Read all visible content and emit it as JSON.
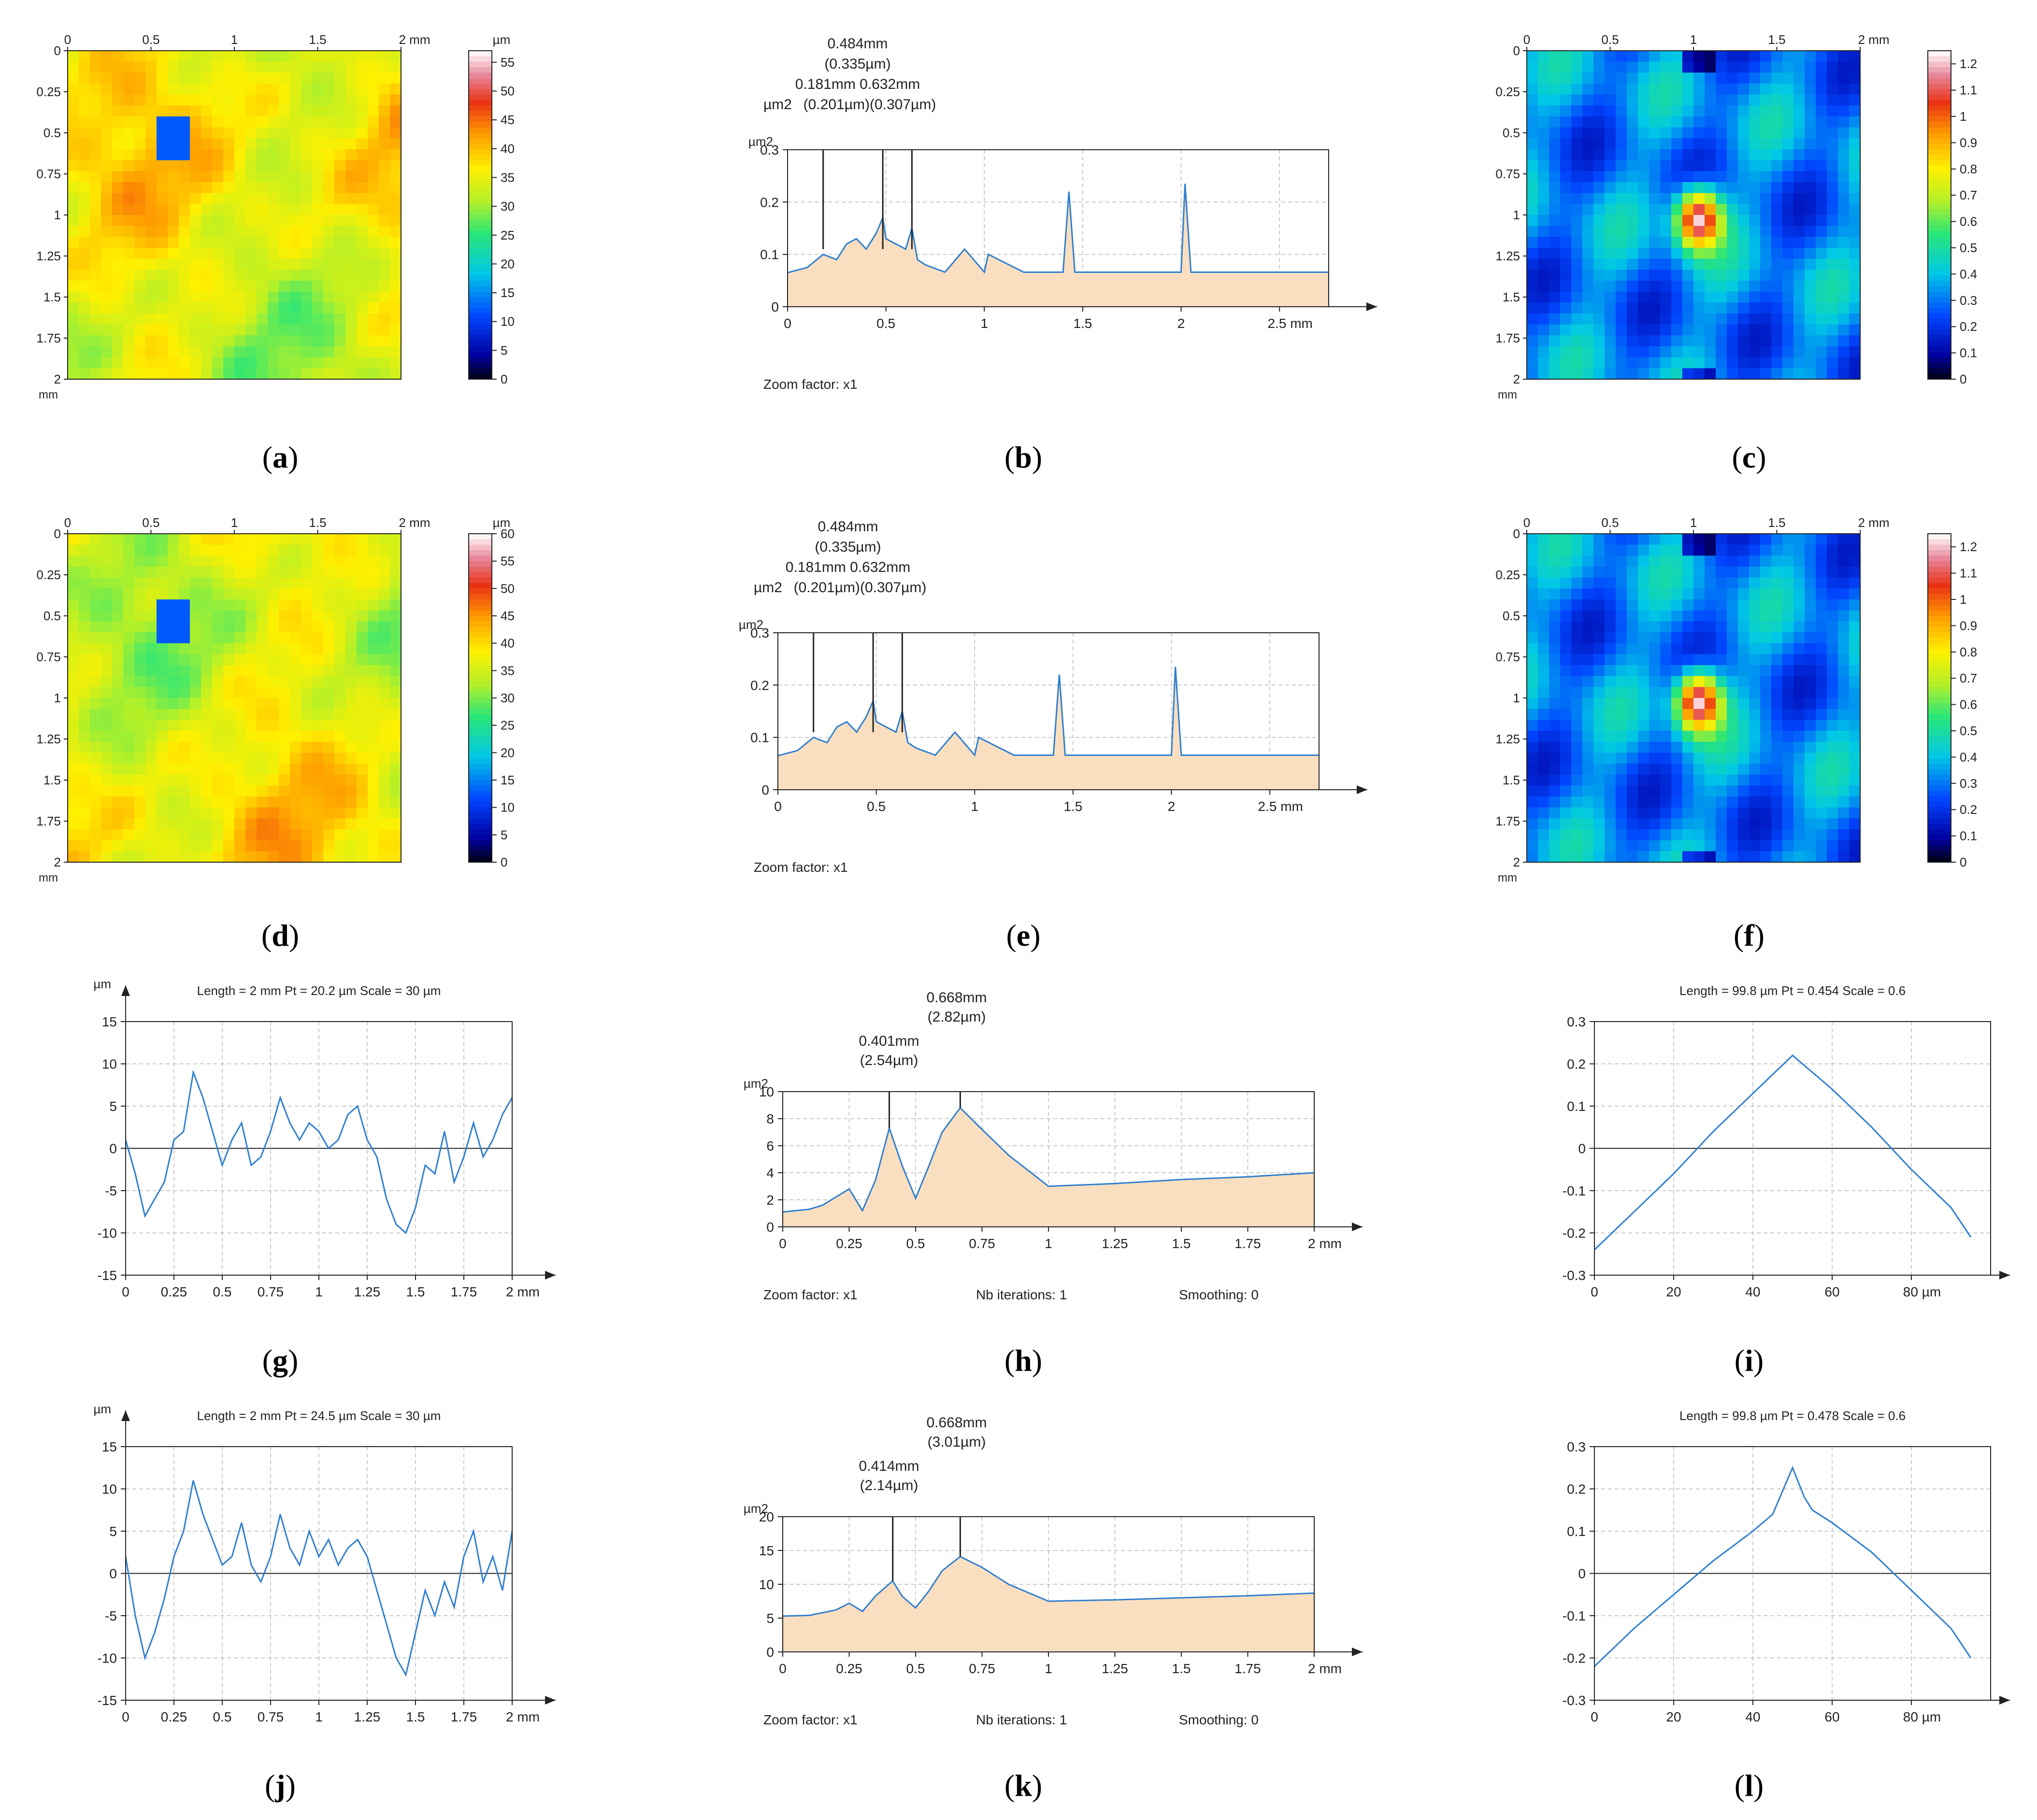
{
  "colors": {
    "line": "#2f7fd0",
    "fill": "#f9dfc0",
    "grid": "#b8b8b8",
    "axis": "#222222"
  },
  "chart_data": [
    {
      "id": "a",
      "type": "heatmap",
      "caption": "a",
      "axis_unit": "mm",
      "value_unit": "µm",
      "x_ticks": [
        "0",
        "0.5",
        "1",
        "1.5",
        "2 mm"
      ],
      "y_ticks": [
        "0",
        "0.25",
        "0.5",
        "0.75",
        "1",
        "1.25",
        "1.5",
        "1.75",
        "2"
      ],
      "y_unit_label": "mm",
      "colorbar_ticks": [
        "55",
        "50",
        "45",
        "40",
        "35",
        "30",
        "25",
        "20",
        "15",
        "10",
        "5",
        "0"
      ],
      "colorbar_range": [
        0,
        57
      ],
      "colormap": "rainbow-height"
    },
    {
      "id": "b",
      "type": "line",
      "caption": "b",
      "ylabel": "µm2",
      "y_ticks": [
        "0.3",
        "0.2",
        "0.1",
        "0"
      ],
      "x_ticks": [
        "0",
        "0.5",
        "1",
        "1.5",
        "2",
        "2.5 mm"
      ],
      "xlim": [
        0,
        2.75
      ],
      "ylim": [
        0,
        0.3
      ],
      "peak_labels": [
        {
          "x": 0.181,
          "line1": "0.181mm",
          "line2": "(0.201µm)"
        },
        {
          "x": 0.484,
          "line1": "0.484mm",
          "line2": "(0.335µm)"
        },
        {
          "x": 0.632,
          "line1": "0.632mm",
          "line2": "(0.307µm)"
        }
      ],
      "peak_text": {
        "top1": "0.484mm",
        "top2": "(0.335µm)",
        "mid": "0.181mm 0.632mm",
        "bottom": "(0.201µm)(0.307µm)"
      },
      "footer": "Zoom factor: x1",
      "series": [
        {
          "name": "spectrum",
          "x": [
            0,
            0.1,
            0.181,
            0.25,
            0.3,
            0.35,
            0.4,
            0.45,
            0.484,
            0.5,
            0.55,
            0.6,
            0.632,
            0.66,
            0.7,
            0.8,
            0.9,
            1.0,
            1.02,
            1.2,
            1.4,
            1.43,
            1.46,
            1.8,
            2.0,
            2.02,
            2.05,
            2.75
          ],
          "y": [
            0.065,
            0.075,
            0.1,
            0.09,
            0.12,
            0.13,
            0.11,
            0.14,
            0.17,
            0.13,
            0.12,
            0.11,
            0.15,
            0.09,
            0.08,
            0.066,
            0.11,
            0.066,
            0.1,
            0.066,
            0.066,
            0.22,
            0.066,
            0.066,
            0.066,
            0.235,
            0.066,
            0.066
          ]
        }
      ]
    },
    {
      "id": "c",
      "type": "heatmap",
      "caption": "c",
      "axis_unit": "mm",
      "x_ticks": [
        "0",
        "0.5",
        "1",
        "1.5",
        "2 mm"
      ],
      "y_ticks": [
        "0",
        "0.25",
        "0.5",
        "0.75",
        "1",
        "1.25",
        "1.5",
        "1.75",
        "2"
      ],
      "y_unit_label": "mm",
      "colorbar_ticks": [
        "1.2",
        "1.1",
        "1",
        "0.9",
        "0.8",
        "0.7",
        "0.6",
        "0.5",
        "0.4",
        "0.3",
        "0.2",
        "0.1",
        "0"
      ],
      "colorbar_range": [
        0,
        1.25
      ],
      "colormap": "autocorrelation"
    },
    {
      "id": "d",
      "type": "heatmap",
      "caption": "d",
      "axis_unit": "mm",
      "value_unit": "µm",
      "x_ticks": [
        "0",
        "0.5",
        "1",
        "1.5",
        "2 mm"
      ],
      "y_ticks": [
        "0",
        "0.25",
        "0.5",
        "0.75",
        "1",
        "1.25",
        "1.5",
        "1.75",
        "2"
      ],
      "y_unit_label": "mm",
      "colorbar_ticks": [
        "60",
        "55",
        "50",
        "45",
        "40",
        "35",
        "30",
        "25",
        "20",
        "15",
        "10",
        "5",
        "0"
      ],
      "colorbar_range": [
        0,
        60
      ],
      "colormap": "rainbow-height"
    },
    {
      "id": "e",
      "type": "line",
      "caption": "e",
      "ylabel": "µm2",
      "y_ticks": [
        "0.3",
        "0.2",
        "0.1",
        "0"
      ],
      "x_ticks": [
        "0",
        "0.5",
        "1",
        "1.5",
        "2",
        "2.5 mm"
      ],
      "xlim": [
        0,
        2.75
      ],
      "ylim": [
        0,
        0.3
      ],
      "peak_labels": [
        {
          "x": 0.181,
          "line1": "0.181mm",
          "line2": "(0.201µm)"
        },
        {
          "x": 0.484,
          "line1": "0.484mm",
          "line2": "(0.335µm)"
        },
        {
          "x": 0.632,
          "line1": "0.632mm",
          "line2": "(0.307µm)"
        }
      ],
      "peak_text": {
        "top1": "0.484mm",
        "top2": "(0.335µm)",
        "mid": "0.181mm 0.632mm",
        "bottom": "(0.201µm)(0.307µm)"
      },
      "footer": "Zoom factor: x1",
      "series": [
        {
          "name": "spectrum",
          "x": [
            0,
            0.1,
            0.181,
            0.25,
            0.3,
            0.35,
            0.4,
            0.45,
            0.484,
            0.5,
            0.55,
            0.6,
            0.632,
            0.66,
            0.7,
            0.8,
            0.9,
            1.0,
            1.02,
            1.2,
            1.4,
            1.43,
            1.46,
            1.8,
            2.0,
            2.02,
            2.05,
            2.75
          ],
          "y": [
            0.065,
            0.075,
            0.1,
            0.09,
            0.12,
            0.13,
            0.11,
            0.14,
            0.17,
            0.13,
            0.12,
            0.11,
            0.15,
            0.09,
            0.08,
            0.066,
            0.11,
            0.066,
            0.1,
            0.066,
            0.066,
            0.22,
            0.066,
            0.066,
            0.066,
            0.235,
            0.066,
            0.066
          ]
        }
      ]
    },
    {
      "id": "f",
      "type": "heatmap",
      "caption": "f",
      "axis_unit": "mm",
      "x_ticks": [
        "0",
        "0.5",
        "1",
        "1.5",
        "2 mm"
      ],
      "y_ticks": [
        "0",
        "0.25",
        "0.5",
        "0.75",
        "1",
        "1.25",
        "1.5",
        "1.75",
        "2"
      ],
      "y_unit_label": "mm",
      "colorbar_ticks": [
        "1.2",
        "1.1",
        "1",
        "0.9",
        "0.8",
        "0.7",
        "0.6",
        "0.5",
        "0.4",
        "0.3",
        "0.2",
        "0.1",
        "0"
      ],
      "colorbar_range": [
        0,
        1.25
      ],
      "colormap": "autocorrelation"
    },
    {
      "id": "g",
      "type": "line",
      "caption": "g",
      "ylabel": "µm",
      "header": "Length = 2 mm  Pt = 20.2 µm  Scale = 30 µm",
      "y_ticks": [
        "15",
        "10",
        "5",
        "0",
        "-5",
        "-10",
        "-15"
      ],
      "x_ticks": [
        "0",
        "0.25",
        "0.5",
        "0.75",
        "1",
        "1.25",
        "1.5",
        "1.75",
        "2 mm"
      ],
      "xlim": [
        0,
        2
      ],
      "ylim": [
        -15,
        15
      ],
      "series": [
        {
          "name": "profile",
          "x": [
            0,
            0.05,
            0.1,
            0.15,
            0.2,
            0.25,
            0.3,
            0.35,
            0.4,
            0.45,
            0.5,
            0.55,
            0.6,
            0.65,
            0.7,
            0.75,
            0.8,
            0.85,
            0.9,
            0.95,
            1.0,
            1.05,
            1.1,
            1.15,
            1.2,
            1.25,
            1.3,
            1.35,
            1.4,
            1.45,
            1.5,
            1.55,
            1.6,
            1.65,
            1.7,
            1.75,
            1.8,
            1.85,
            1.9,
            1.95,
            2.0
          ],
          "y": [
            1,
            -3,
            -8,
            -6,
            -4,
            1,
            2,
            9,
            6,
            2,
            -2,
            1,
            3,
            -2,
            -1,
            2,
            6,
            3,
            1,
            3,
            2,
            0,
            1,
            4,
            5,
            1,
            -1,
            -6,
            -9,
            -10,
            -7,
            -2,
            -3,
            2,
            -4,
            -1,
            3,
            -1,
            1,
            4,
            6
          ]
        }
      ]
    },
    {
      "id": "h",
      "type": "line",
      "caption": "h",
      "ylabel": "µm2",
      "y_ticks": [
        "10",
        "8",
        "6",
        "4",
        "2",
        "0"
      ],
      "x_ticks": [
        "0",
        "0.25",
        "0.5",
        "0.75",
        "1",
        "1.25",
        "1.5",
        "1.75",
        "2 mm"
      ],
      "xlim": [
        0,
        2
      ],
      "ylim": [
        0,
        10
      ],
      "peak_text": {
        "p2a": "0.668mm",
        "p2b": "(2.82µm)",
        "p1a": "0.401mm",
        "p1b": "(2.54µm)"
      },
      "peaks_x": [
        0.401,
        0.668
      ],
      "footer": "Zoom factor: x1",
      "footer2": "Nb iterations: 1",
      "footer3": "Smoothing: 0",
      "series": [
        {
          "name": "spectrum",
          "x": [
            0,
            0.1,
            0.15,
            0.2,
            0.25,
            0.3,
            0.35,
            0.401,
            0.45,
            0.5,
            0.55,
            0.6,
            0.668,
            0.75,
            0.85,
            1.0,
            1.25,
            1.5,
            1.75,
            2.0
          ],
          "y": [
            1.1,
            1.3,
            1.6,
            2.2,
            2.8,
            1.2,
            3.5,
            7.3,
            4.5,
            2.1,
            4.5,
            7.0,
            8.8,
            7.2,
            5.3,
            3.0,
            3.2,
            3.5,
            3.7,
            4.0
          ]
        }
      ]
    },
    {
      "id": "i",
      "type": "line",
      "caption": "i",
      "header": "Length = 99.8 µm  Pt = 0.454    Scale = 0.6",
      "y_ticks": [
        "0.3",
        "0.2",
        "0.1",
        "0",
        "-0.1",
        "-0.2",
        "-0.3"
      ],
      "x_ticks": [
        "0",
        "20",
        "40",
        "60",
        "80 µm"
      ],
      "xlim": [
        0,
        100
      ],
      "ylim": [
        -0.3,
        0.3
      ],
      "series": [
        {
          "name": "autocorrelation",
          "x": [
            0,
            10,
            20,
            30,
            40,
            50,
            60,
            70,
            80,
            90,
            95
          ],
          "y": [
            -0.24,
            -0.15,
            -0.06,
            0.04,
            0.13,
            0.22,
            0.14,
            0.05,
            -0.05,
            -0.14,
            -0.21
          ]
        }
      ]
    },
    {
      "id": "j",
      "type": "line",
      "caption": "j",
      "ylabel": "µm",
      "header": "Length = 2 mm  Pt = 24.5 µm  Scale = 30 µm",
      "y_ticks": [
        "15",
        "10",
        "5",
        "0",
        "-5",
        "-10",
        "-15"
      ],
      "x_ticks": [
        "0",
        "0.25",
        "0.5",
        "0.75",
        "1",
        "1.25",
        "1.5",
        "1.75",
        "2 mm"
      ],
      "xlim": [
        0,
        2
      ],
      "ylim": [
        -15,
        15
      ],
      "series": [
        {
          "name": "profile",
          "x": [
            0,
            0.05,
            0.1,
            0.15,
            0.2,
            0.25,
            0.3,
            0.35,
            0.4,
            0.45,
            0.5,
            0.55,
            0.6,
            0.65,
            0.7,
            0.75,
            0.8,
            0.85,
            0.9,
            0.95,
            1.0,
            1.05,
            1.1,
            1.15,
            1.2,
            1.25,
            1.3,
            1.35,
            1.4,
            1.45,
            1.5,
            1.55,
            1.6,
            1.65,
            1.7,
            1.75,
            1.8,
            1.85,
            1.9,
            1.95,
            2.0
          ],
          "y": [
            2,
            -5,
            -10,
            -7,
            -3,
            2,
            5,
            11,
            7,
            4,
            1,
            2,
            6,
            1,
            -1,
            2,
            7,
            3,
            1,
            5,
            2,
            4,
            1,
            3,
            4,
            2,
            -2,
            -6,
            -10,
            -12,
            -7,
            -2,
            -5,
            -1,
            -4,
            2,
            5,
            -1,
            2,
            -2,
            5
          ]
        }
      ]
    },
    {
      "id": "k",
      "type": "line",
      "caption": "k",
      "ylabel": "µm2",
      "y_ticks": [
        "20",
        "15",
        "10",
        "5",
        "0"
      ],
      "x_ticks": [
        "0",
        "0.25",
        "0.5",
        "0.75",
        "1",
        "1.25",
        "1.5",
        "1.75",
        "2 mm"
      ],
      "xlim": [
        0,
        2
      ],
      "ylim": [
        0,
        20
      ],
      "peak_text": {
        "p2a": "0.668mm",
        "p2b": "(3.01µm)",
        "p1a": "0.414mm",
        "p1b": "(2.14µm)"
      },
      "peaks_x": [
        0.414,
        0.668
      ],
      "footer": "Zoom factor: x1",
      "footer2": "Nb iterations: 1",
      "footer3": "Smoothing: 0",
      "series": [
        {
          "name": "spectrum",
          "x": [
            0,
            0.1,
            0.15,
            0.2,
            0.25,
            0.3,
            0.35,
            0.414,
            0.45,
            0.5,
            0.55,
            0.6,
            0.668,
            0.75,
            0.85,
            1.0,
            1.25,
            1.5,
            1.75,
            2.0
          ],
          "y": [
            5.3,
            5.4,
            5.8,
            6.2,
            7.2,
            6.0,
            8.3,
            10.5,
            8.2,
            6.5,
            9.0,
            12.0,
            14.1,
            12.5,
            10.0,
            7.5,
            7.7,
            8.0,
            8.3,
            8.7
          ]
        }
      ]
    },
    {
      "id": "l",
      "type": "line",
      "caption": "l",
      "header": "Length = 99.8 µm  Pt = 0.478    Scale = 0.6",
      "y_ticks": [
        "0.3",
        "0.2",
        "0.1",
        "0",
        "-0.1",
        "-0.2",
        "-0.3"
      ],
      "x_ticks": [
        "0",
        "20",
        "40",
        "60",
        "80 µm"
      ],
      "xlim": [
        0,
        100
      ],
      "ylim": [
        -0.3,
        0.3
      ],
      "series": [
        {
          "name": "autocorrelation",
          "x": [
            0,
            10,
            20,
            30,
            40,
            45,
            50,
            53,
            55,
            60,
            70,
            80,
            90,
            95
          ],
          "y": [
            -0.22,
            -0.13,
            -0.05,
            0.03,
            0.1,
            0.14,
            0.25,
            0.18,
            0.15,
            0.12,
            0.05,
            -0.04,
            -0.13,
            -0.2
          ]
        }
      ]
    }
  ]
}
